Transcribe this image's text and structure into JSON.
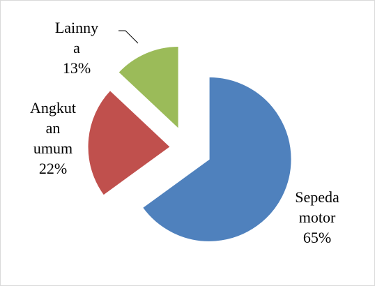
{
  "chart_data": {
    "type": "pie",
    "categories": [
      "Sepeda motor",
      "Angkutan umum",
      "Lainnya"
    ],
    "values": [
      65,
      22,
      13
    ],
    "value_labels": [
      "65%",
      "22%",
      "13%"
    ],
    "colors": [
      "#4f81bd",
      "#c0504d",
      "#9bbb59"
    ]
  }
}
